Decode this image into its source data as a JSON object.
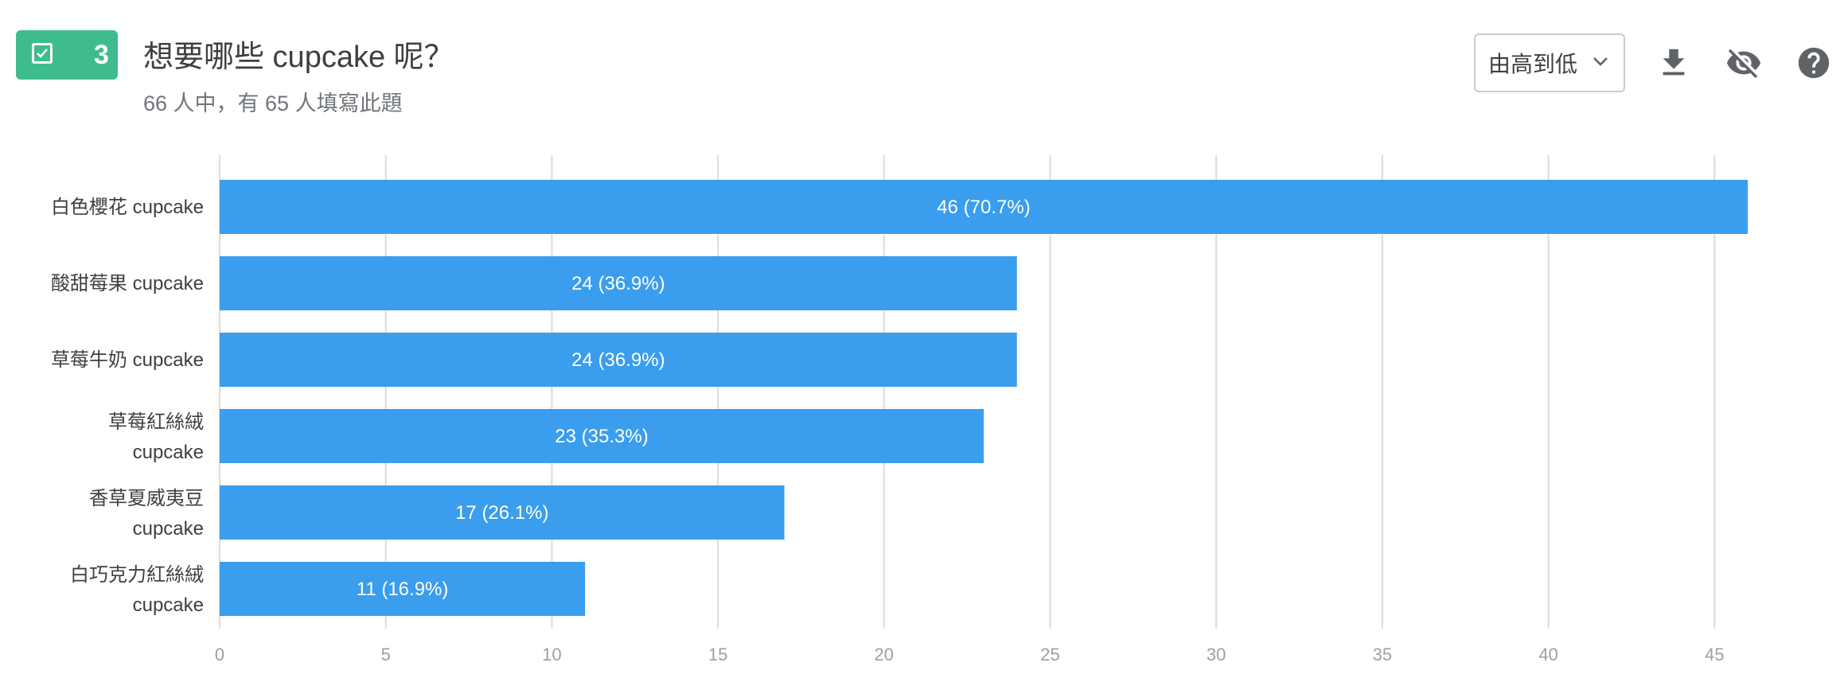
{
  "question": {
    "number": "3",
    "title": "想要哪些 cupcake 呢？",
    "subtitle": "66 人中，有 65 人填寫此題"
  },
  "toolbar": {
    "sort_label": "由高到低",
    "icons": [
      "download-icon",
      "visibility-off-icon",
      "help-icon"
    ]
  },
  "colors": {
    "bar": "#3a9ded",
    "badge": "#3fbc8e",
    "grid": "#dadce0"
  },
  "chart_data": {
    "type": "bar",
    "orientation": "horizontal",
    "categories": [
      [
        "白色櫻花 cupcake"
      ],
      [
        "酸甜莓果 cupcake"
      ],
      [
        "草莓牛奶 cupcake"
      ],
      [
        "草莓紅絲絨",
        "cupcake"
      ],
      [
        "香草夏威夷豆",
        "cupcake"
      ],
      [
        "白巧克力紅絲絨",
        "cupcake"
      ]
    ],
    "values": [
      46,
      24,
      24,
      23,
      17,
      11
    ],
    "data_labels": [
      "46 (70.7%)",
      "24 (36.9%)",
      "24 (36.9%)",
      "23 (35.3%)",
      "17 (26.1%)",
      "11 (16.9%)"
    ],
    "xlim": [
      0,
      48
    ],
    "xticks": [
      0,
      5,
      10,
      15,
      20,
      25,
      30,
      35,
      40,
      45
    ],
    "grid": true,
    "legend": "none"
  }
}
